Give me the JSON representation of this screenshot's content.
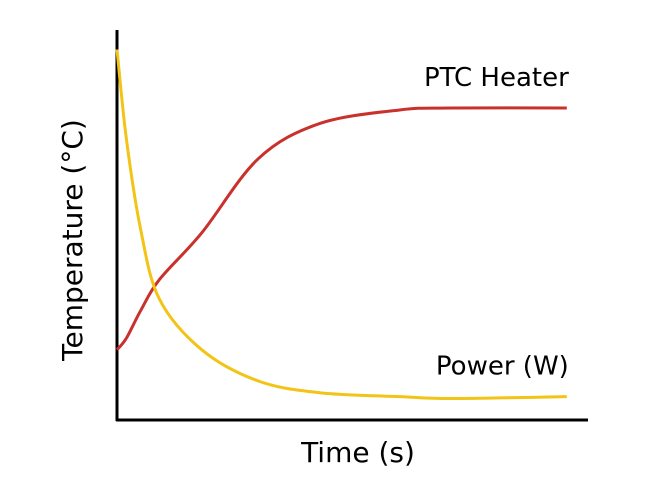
{
  "chart_data": {
    "type": "line",
    "x_label": "Time (s)",
    "y_label": "Temperature (°C)",
    "x": [
      0,
      2,
      5,
      9,
      18,
      30,
      43,
      60,
      71,
      95.5
    ],
    "xlim": [
      0,
      100
    ],
    "ylim": [
      0,
      100
    ],
    "series": [
      {
        "name": "PTC Heater",
        "color": "#c8312c",
        "values": [
          18,
          21,
          28,
          36,
          48,
          67,
          76,
          79.5,
          80,
          80
        ]
      },
      {
        "name": "Power (W)",
        "color": "#f2c417",
        "values": [
          95,
          72,
          49,
          31,
          18,
          10,
          7,
          6,
          5.5,
          6
        ]
      }
    ]
  }
}
